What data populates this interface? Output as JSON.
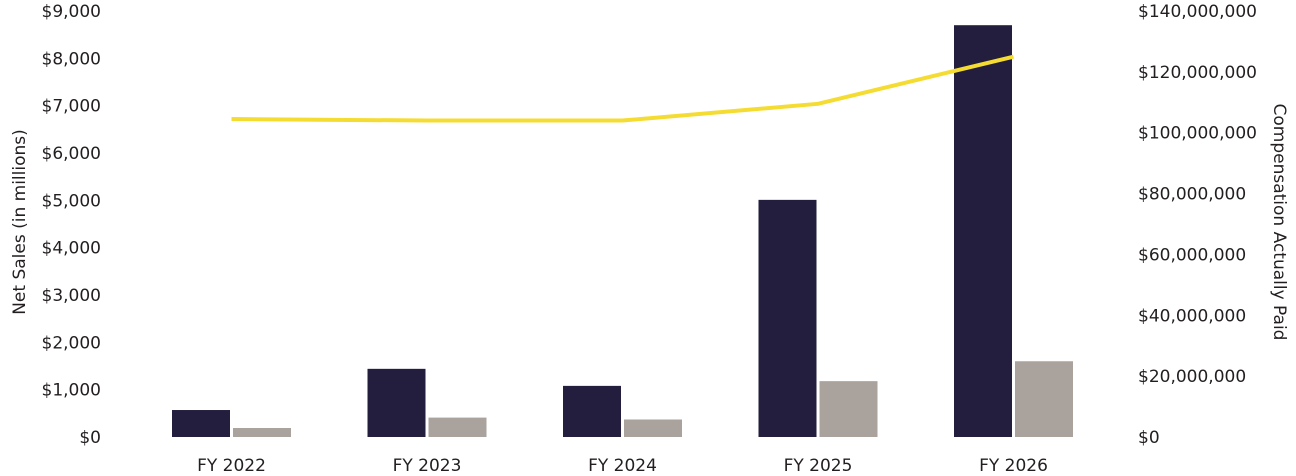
{
  "chart_data": {
    "type": "bar",
    "categories": [
      "FY 2022",
      "FY 2023",
      "FY 2024",
      "FY 2025",
      "FY 2026"
    ],
    "ylabel": "Net Sales (in millions)",
    "y2label": "Compensation Actually Paid",
    "ylim": [
      0,
      9000
    ],
    "y2lim": [
      0,
      140000000
    ],
    "yticks": [
      0,
      1000,
      2000,
      3000,
      4000,
      5000,
      6000,
      7000,
      8000,
      9000
    ],
    "yticklabels": [
      "$0",
      "$1,000",
      "$2,000",
      "$3,000",
      "$4,000",
      "$5,000",
      "$6,000",
      "$7,000",
      "$8,000",
      "$9,000"
    ],
    "y2ticks": [
      0,
      20000000,
      40000000,
      60000000,
      80000000,
      100000000,
      120000000,
      140000000
    ],
    "y2ticklabels": [
      "$0",
      "$20,000,000",
      "$40,000,000",
      "$60,000,000",
      "$80,000,000",
      "$100,000,000",
      "$120,000,000",
      "$140,000,000"
    ],
    "series": [
      {
        "kind": "bar",
        "axis": "left",
        "color": "#231e3e",
        "values": [
          570,
          1440,
          1080,
          5010,
          8700
        ]
      },
      {
        "kind": "bar",
        "axis": "left",
        "color": "#aaa29d",
        "values": [
          190,
          410,
          370,
          1180,
          1600
        ]
      },
      {
        "kind": "line",
        "axis": "right",
        "color": "#f5dc32",
        "values": [
          104500000,
          104000000,
          104000000,
          109500000,
          125000000
        ]
      }
    ],
    "grid": false,
    "legend": "none"
  }
}
